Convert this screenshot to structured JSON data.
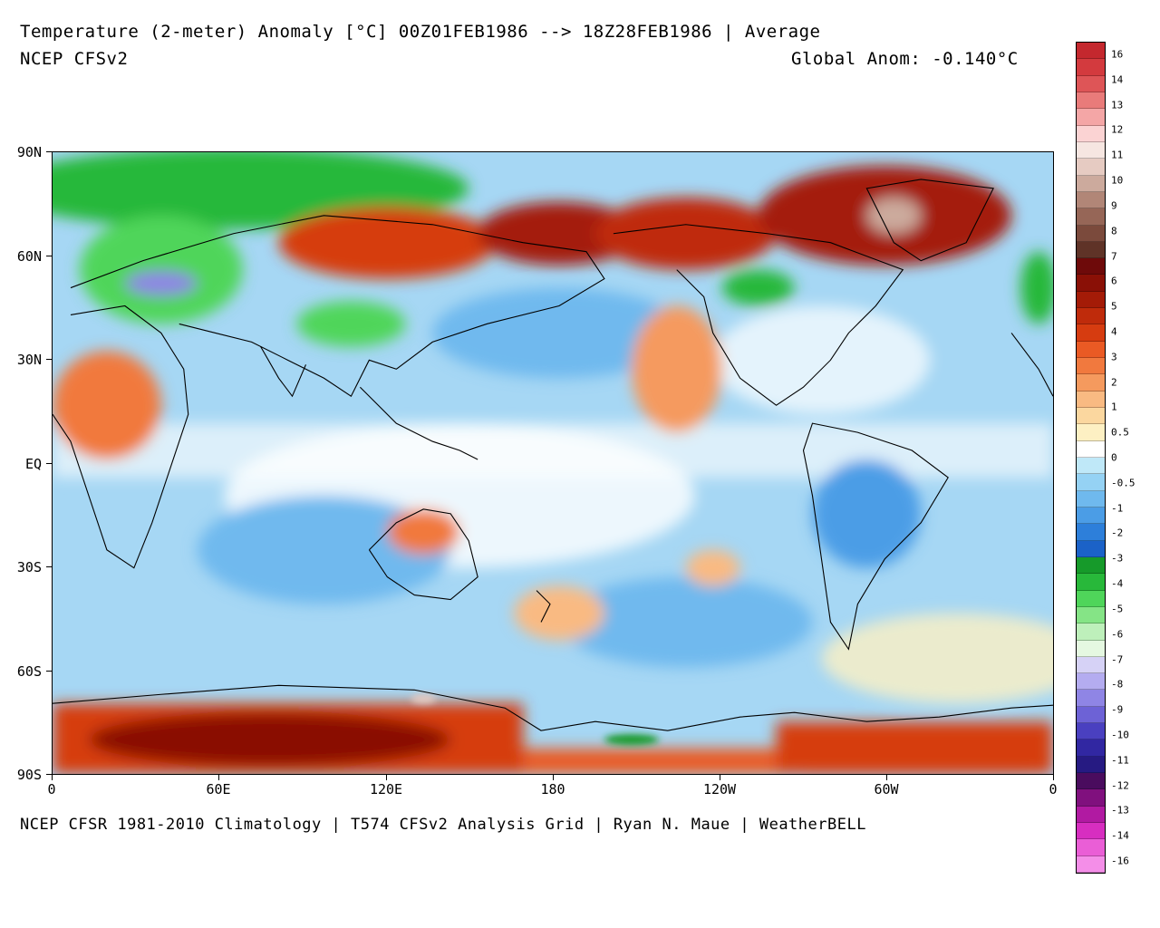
{
  "header": {
    "title": "Temperature (2-meter) Anomaly  [°C] 00Z01FEB1986 --> 18Z28FEB1986 | Average",
    "subtitle": "NCEP CFSv2",
    "global_anom": "Global Anom: -0.140°C"
  },
  "footer": {
    "credits": "NCEP CFSR 1981-2010 Climatology | T574 CFSv2 Analysis Grid | Ryan N. Maue | WeatherBELL"
  },
  "map": {
    "lat_labels": [
      "90N",
      "60N",
      "30N",
      "EQ",
      "30S",
      "60S",
      "90S"
    ],
    "lon_labels": [
      "0",
      "60E",
      "120E",
      "180",
      "120W",
      "60W",
      "0"
    ]
  },
  "colorbar": {
    "labels": [
      "16",
      "14",
      "13",
      "12",
      "11",
      "10",
      "9",
      "8",
      "7",
      "6",
      "5",
      "4",
      "3",
      "2",
      "1",
      "0.5",
      "0",
      "-0.5",
      "-1",
      "-2",
      "-3",
      "-4",
      "-5",
      "-6",
      "-7",
      "-8",
      "-9",
      "-10",
      "-11",
      "-12",
      "-13",
      "-14",
      "-16"
    ],
    "colors": [
      "#c4282e",
      "#d33a3e",
      "#de5557",
      "#e97b7a",
      "#f4a6a6",
      "#fbd3d3",
      "#f6e6e1",
      "#e6cbc2",
      "#ccaa9d",
      "#b18677",
      "#966657",
      "#7b4a3c",
      "#5f3327",
      "#6e0a0a",
      "#8a1006",
      "#a41b07",
      "#bf2b0b",
      "#d63c10",
      "#ea5a24",
      "#f1793e",
      "#f59a5e",
      "#f9ba82",
      "#fbd79f",
      "#fdf0c3",
      "#ffffff",
      "#bfe8f8",
      "#95d2f4",
      "#6fb9ee",
      "#4b9de6",
      "#2d7fda",
      "#1b62c8",
      "#169a2a",
      "#28b83a",
      "#4fd55a",
      "#85e486",
      "#bef0bb",
      "#e5f8e1",
      "#d6d2f6",
      "#b4acf0",
      "#8f85e5",
      "#6d62d6",
      "#4a40c0",
      "#3127a2",
      "#261a82",
      "#4a0c5e",
      "#80107e",
      "#b11aa2",
      "#d72ec0",
      "#ea5ed6",
      "#f48ee8"
    ]
  }
}
